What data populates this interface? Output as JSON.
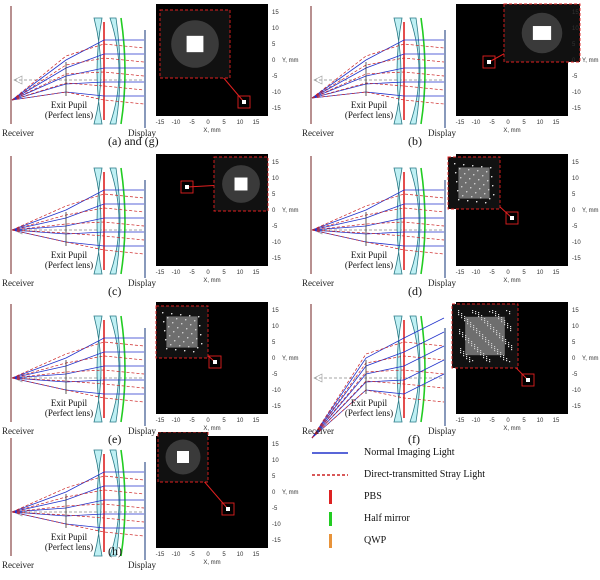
{
  "panels": [
    {
      "id": "a",
      "caption": "(a) and (g)"
    },
    {
      "id": "b",
      "caption": "(b)"
    },
    {
      "id": "c",
      "caption": "(c)"
    },
    {
      "id": "d",
      "caption": "(d)"
    },
    {
      "id": "e",
      "caption": "(e)"
    },
    {
      "id": "f",
      "caption": "(f)"
    },
    {
      "id": "h",
      "caption": "(h)"
    }
  ],
  "labels": {
    "receiver": "Receiver",
    "display": "Display",
    "exit_pupil_line1": "Exit Pupil",
    "exit_pupil_line2": "(Perfect lens)",
    "y_axis": "Y, mm",
    "x_axis": "X, mm"
  },
  "ticks": {
    "x": [
      "-15",
      "-10",
      "-5",
      "0",
      "5",
      "10",
      "15"
    ],
    "y": [
      "15",
      "10",
      "5",
      "0",
      "-5",
      "-10",
      "-15"
    ]
  },
  "legend": [
    {
      "label": "Normal Imaging Light",
      "color": "#2233cc",
      "style": "solid"
    },
    {
      "label": "Direct-transmitted Stray Light",
      "color": "#cc2222",
      "style": "dashed"
    },
    {
      "label": "PBS",
      "color": "#dd2222",
      "style": "bar"
    },
    {
      "label": "Half mirror",
      "color": "#22cc22",
      "style": "bar"
    },
    {
      "label": "QWP",
      "color": "#e8933a",
      "style": "bar"
    }
  ],
  "colors": {
    "imaging": "#2233cc",
    "stray": "#cc2222",
    "pbs": "#dd2222",
    "half_mirror": "#22cc22",
    "qwp": "#e8933a",
    "lens_fill": "#bff0f4",
    "lens_stroke": "#2a7a86"
  }
}
